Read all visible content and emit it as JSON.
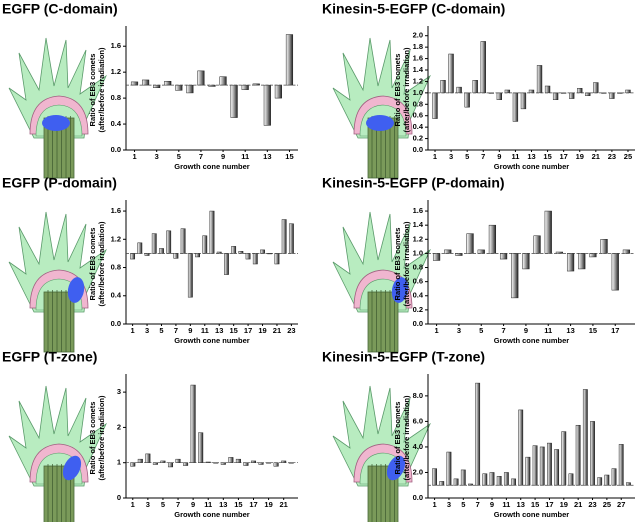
{
  "chart_data": [
    {
      "type": "bar",
      "title": "EGFP (C-domain)",
      "ylabel": [
        "Ratio of EB3 comets",
        "(after/before irradiation)"
      ],
      "xlabel": "Growth cone number",
      "categories": [
        1,
        null,
        3,
        null,
        5,
        null,
        7,
        null,
        9,
        null,
        11,
        null,
        13,
        null,
        15
      ],
      "values": [
        1.05,
        1.08,
        0.96,
        1.06,
        0.92,
        0.88,
        1.22,
        0.98,
        1.13,
        0.5,
        0.93,
        1.02,
        0.38,
        0.8,
        1.78
      ],
      "baseline": 1,
      "color": "#9a9a9a",
      "ylim": [
        0,
        1.85
      ],
      "yticks": [
        {
          "value": 0,
          "label": "0.0"
        },
        0.4,
        0.8,
        1.2,
        1.6
      ],
      "grid": false
    },
    {
      "type": "bar",
      "title": "Kinesin-5-EGFP (C-domain)",
      "ylabel": [
        "Ratio of EB3 comets",
        "(after/before irradiation)"
      ],
      "xlabel": "Growth cone number",
      "categories": [
        1,
        null,
        3,
        null,
        5,
        null,
        7,
        null,
        9,
        null,
        11,
        null,
        13,
        null,
        15,
        null,
        17,
        null,
        19,
        null,
        21,
        null,
        23,
        null,
        25
      ],
      "values": [
        0.55,
        1.22,
        1.68,
        1.1,
        0.75,
        1.22,
        1.9,
        1.0,
        0.88,
        1.05,
        0.5,
        0.72,
        1.05,
        1.48,
        1.12,
        0.88,
        1.0,
        0.9,
        1.08,
        0.95,
        1.18,
        1.0,
        0.9,
        1.0,
        1.05
      ],
      "baseline": 1,
      "color": "#9a9a9a",
      "ylim": [
        0,
        2.1
      ],
      "yticks": [
        {
          "value": 0,
          "label": "0.0"
        },
        0.2,
        0.4,
        0.6,
        0.8,
        {
          "value": 1,
          "label": "1.0"
        },
        1.2,
        1.4,
        1.6,
        1.8,
        {
          "value": 2,
          "label": "2.0"
        }
      ],
      "grid": false
    },
    {
      "type": "bar",
      "title": "EGFP (P-domain)",
      "ylabel": [
        "Ratio of EB3 comets",
        "(after/before irradiation)"
      ],
      "xlabel": "Growth cone number",
      "categories": [
        1,
        null,
        3,
        null,
        5,
        null,
        7,
        null,
        9,
        null,
        11,
        null,
        13,
        null,
        15,
        null,
        17,
        null,
        19,
        null,
        21,
        null,
        23
      ],
      "values": [
        0.92,
        1.15,
        0.97,
        1.28,
        1.07,
        1.32,
        0.93,
        1.35,
        0.38,
        0.95,
        1.25,
        1.6,
        1.02,
        0.7,
        1.1,
        1.03,
        0.92,
        0.85,
        1.05,
        1.0,
        0.85,
        1.48,
        1.42
      ],
      "baseline": 1,
      "color": "#9a9a9a",
      "ylim": [
        0,
        1.7
      ],
      "yticks": [
        {
          "value": 0,
          "label": "0.0"
        },
        0.4,
        0.8,
        1.2,
        1.6
      ],
      "grid": false
    },
    {
      "type": "bar",
      "title": "Kinesin-5-EGFP (P-domain)",
      "ylabel": [
        "Ratio of EB3 comets",
        "(after/before irradiation)"
      ],
      "xlabel": "Growth cone number",
      "categories": [
        1,
        null,
        3,
        null,
        5,
        null,
        7,
        null,
        9,
        null,
        11,
        null,
        13,
        null,
        15,
        null,
        17,
        null
      ],
      "values": [
        0.9,
        1.05,
        0.97,
        1.28,
        1.05,
        1.4,
        0.92,
        0.37,
        0.78,
        1.25,
        1.6,
        1.02,
        0.75,
        0.78,
        0.95,
        1.2,
        0.48,
        1.05
      ],
      "baseline": 1,
      "color": "#9a9a9a",
      "ylim": [
        0,
        1.7
      ],
      "yticks": [
        {
          "value": 0,
          "label": "0.0"
        },
        0.2,
        0.4,
        0.6,
        0.8,
        {
          "value": 1,
          "label": "1.0"
        },
        1.2,
        1.4,
        1.6
      ],
      "grid": false
    },
    {
      "type": "bar",
      "title": "EGFP (T-zone)",
      "ylabel": [
        "Ratio of EB3 comets",
        "(after/before irradiation)"
      ],
      "xlabel": "Growth cone number",
      "categories": [
        1,
        null,
        3,
        null,
        5,
        null,
        7,
        null,
        9,
        null,
        11,
        null,
        13,
        null,
        15,
        null,
        17,
        null,
        19,
        null,
        21,
        null
      ],
      "values": [
        0.9,
        1.1,
        1.25,
        0.95,
        1.05,
        0.88,
        1.1,
        0.92,
        3.2,
        1.85,
        1.02,
        1.0,
        0.95,
        1.15,
        1.1,
        0.92,
        1.05,
        0.95,
        1.0,
        0.9,
        1.05,
        1.0
      ],
      "baseline": 1,
      "color": "#9a9a9a",
      "ylim": [
        0,
        3.4
      ],
      "yticks": [
        0,
        1,
        2,
        3
      ],
      "grid": false
    },
    {
      "type": "bar",
      "title": "Kinesin-5-EGFP (T-zone)",
      "ylabel": [
        "Ratio of EB3 comets",
        "(after/before irradiation)"
      ],
      "xlabel": "Growth cone number",
      "categories": [
        1,
        null,
        3,
        null,
        5,
        null,
        7,
        null,
        9,
        null,
        11,
        null,
        13,
        null,
        15,
        null,
        17,
        null,
        19,
        null,
        21,
        null,
        23,
        null,
        25,
        null,
        27,
        null
      ],
      "values": [
        2.3,
        1.3,
        3.6,
        1.5,
        2.2,
        1.1,
        9.0,
        1.9,
        2.0,
        1.7,
        2.0,
        1.5,
        6.9,
        3.2,
        4.1,
        4.0,
        4.3,
        3.8,
        5.2,
        1.9,
        5.7,
        8.5,
        6.0,
        1.6,
        1.8,
        2.3,
        4.2,
        1.2
      ],
      "baseline": 1,
      "color": "#9a9a9a",
      "ylim": [
        0,
        9.4
      ],
      "yticks": [
        {
          "value": 0,
          "label": "0.0"
        },
        {
          "value": 2,
          "label": "2.0"
        },
        {
          "value": 4,
          "label": "4.0"
        },
        {
          "value": 6,
          "label": "6.0"
        },
        {
          "value": 8,
          "label": "8.0"
        }
      ],
      "grid": false
    }
  ]
}
